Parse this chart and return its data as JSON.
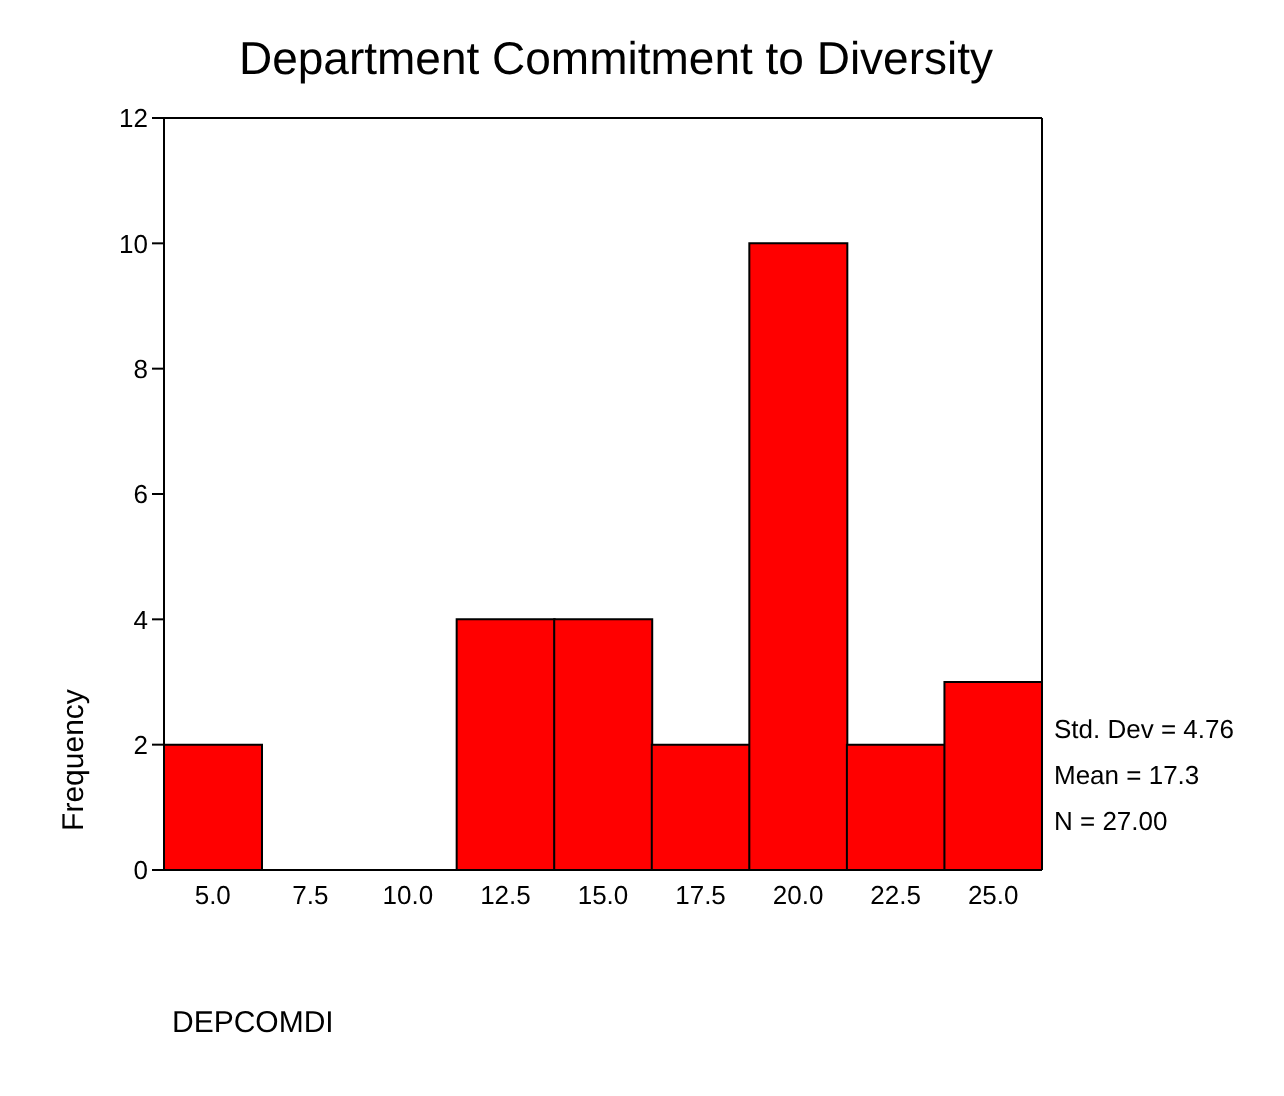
{
  "chart_data": {
    "type": "histogram",
    "title": "Department Commitment to Diversity",
    "xlabel": "DEPCOMDI",
    "ylabel": "Frequency",
    "bins": [
      3.75,
      6.25,
      8.75,
      11.25,
      13.75,
      16.25,
      18.75,
      21.25,
      23.75,
      26.25
    ],
    "values": [
      2,
      0,
      0,
      4,
      4,
      2,
      10,
      2,
      3
    ],
    "color": "#ff0000",
    "xlim": [
      3.75,
      26.25
    ],
    "xticks": [
      {
        "value": 5,
        "label": "5.0"
      },
      {
        "value": 7.5,
        "label": "7.5"
      },
      {
        "value": 10,
        "label": "10.0"
      },
      {
        "value": 12.5,
        "label": "12.5"
      },
      {
        "value": 15,
        "label": "15.0"
      },
      {
        "value": 17.5,
        "label": "17.5"
      },
      {
        "value": 20,
        "label": "20.0"
      },
      {
        "value": 22.5,
        "label": "22.5"
      },
      {
        "value": 25,
        "label": "25.0"
      }
    ],
    "ylim": [
      0,
      12
    ],
    "yticks": [
      0,
      2,
      4,
      6,
      8,
      10,
      12
    ],
    "annotations": [
      "Std. Dev = 4.76",
      "Mean = 17.3",
      "N = 27.00"
    ],
    "grid": false,
    "legend": false
  }
}
